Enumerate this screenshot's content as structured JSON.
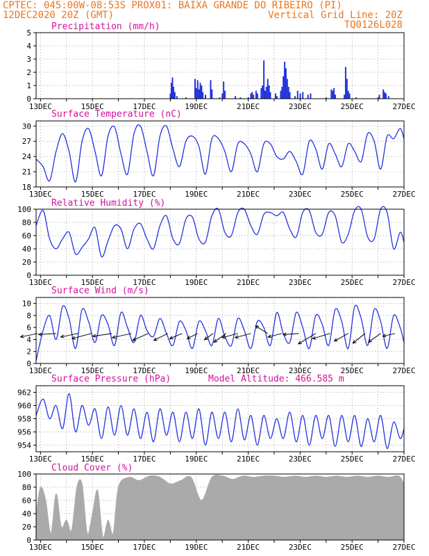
{
  "header": {
    "line1_left": "CPTEC:  045:00W-08:53S  PROX01: BAIXA GRANDE DO RIBEIRO (PI)",
    "line2_left": "12DEC2020 20Z (GMT)",
    "line2_right": "Vertical Grid Line: 20Z",
    "line3_right": "TQ0126L028"
  },
  "colors": {
    "header": "#e8761f",
    "panel_title": "#d4109a",
    "series": "#2233dd",
    "cloud": "#aaaaaa"
  },
  "x_tick_labels": [
    "13DEC",
    "15DEC",
    "17DEC",
    "19DEC",
    "21DEC",
    "23DEC",
    "25DEC",
    "27DEC"
  ],
  "chart_data": [
    {
      "type": "bar",
      "title": "Precipitation (mm/h)",
      "ylim": [
        0,
        5
      ],
      "yticks": [
        0,
        1,
        2,
        3,
        4,
        5
      ],
      "x_start_day": 12.83,
      "x_step_hours": 1,
      "bars": [
        [
          18.0,
          0.4
        ],
        [
          18.04,
          1.2
        ],
        [
          18.08,
          1.6
        ],
        [
          18.12,
          0.9
        ],
        [
          18.17,
          0.5
        ],
        [
          18.25,
          0.2
        ],
        [
          18.6,
          0.1
        ],
        [
          18.95,
          1.5
        ],
        [
          19.0,
          0.8
        ],
        [
          19.05,
          1.4
        ],
        [
          19.1,
          0.7
        ],
        [
          19.15,
          1.2
        ],
        [
          19.2,
          1.0
        ],
        [
          19.25,
          0.5
        ],
        [
          19.35,
          0.3
        ],
        [
          19.55,
          1.4
        ],
        [
          19.6,
          0.7
        ],
        [
          19.9,
          0.1
        ],
        [
          20.0,
          0.4
        ],
        [
          20.05,
          1.3
        ],
        [
          20.1,
          0.6
        ],
        [
          20.5,
          0.2
        ],
        [
          20.7,
          0.1
        ],
        [
          21.0,
          0.1
        ],
        [
          21.1,
          0.4
        ],
        [
          21.15,
          0.5
        ],
        [
          21.2,
          0.3
        ],
        [
          21.3,
          0.6
        ],
        [
          21.35,
          0.4
        ],
        [
          21.5,
          0.8
        ],
        [
          21.55,
          1.0
        ],
        [
          21.6,
          2.9
        ],
        [
          21.65,
          0.6
        ],
        [
          21.7,
          0.9
        ],
        [
          21.75,
          1.5
        ],
        [
          21.8,
          1.0
        ],
        [
          21.85,
          0.5
        ],
        [
          22.05,
          0.4
        ],
        [
          22.1,
          0.2
        ],
        [
          22.25,
          0.6
        ],
        [
          22.3,
          0.9
        ],
        [
          22.35,
          1.7
        ],
        [
          22.4,
          2.8
        ],
        [
          22.45,
          2.3
        ],
        [
          22.5,
          1.5
        ],
        [
          22.55,
          0.9
        ],
        [
          22.6,
          0.5
        ],
        [
          22.8,
          0.2
        ],
        [
          22.9,
          0.6
        ],
        [
          23.0,
          0.4
        ],
        [
          23.1,
          0.5
        ],
        [
          23.3,
          0.3
        ],
        [
          23.4,
          0.4
        ],
        [
          24.0,
          0.1
        ],
        [
          24.2,
          0.7
        ],
        [
          24.25,
          0.6
        ],
        [
          24.3,
          0.8
        ],
        [
          24.35,
          0.3
        ],
        [
          24.7,
          0.3
        ],
        [
          24.75,
          2.4
        ],
        [
          24.8,
          1.5
        ],
        [
          24.85,
          0.6
        ],
        [
          24.9,
          0.4
        ],
        [
          25.15,
          0.1
        ],
        [
          26.0,
          0.1
        ],
        [
          26.05,
          0.3
        ],
        [
          26.2,
          0.7
        ],
        [
          26.25,
          0.5
        ],
        [
          26.3,
          0.4
        ],
        [
          26.4,
          0.2
        ]
      ]
    },
    {
      "type": "line",
      "title": "Surface Temperature (nC)",
      "ylim": [
        18,
        31
      ],
      "yticks": [
        18,
        21,
        24,
        27,
        30
      ],
      "days": [
        12.83,
        13.1,
        13.35,
        13.6,
        13.85,
        14.1,
        14.35,
        14.6,
        14.85,
        15.1,
        15.35,
        15.6,
        15.85,
        16.1,
        16.35,
        16.6,
        16.85,
        17.1,
        17.35,
        17.6,
        17.85,
        18.1,
        18.35,
        18.6,
        18.85,
        19.1,
        19.35,
        19.6,
        19.85,
        20.1,
        20.35,
        20.6,
        20.85,
        21.1,
        21.35,
        21.6,
        21.85,
        22.1,
        22.35,
        22.6,
        22.85,
        23.1,
        23.35,
        23.6,
        23.85,
        24.1,
        24.35,
        24.6,
        24.85,
        25.1,
        25.35,
        25.6,
        25.85,
        26.1,
        26.35,
        26.6,
        26.85,
        27.0
      ],
      "values": [
        23.5,
        22.0,
        19.2,
        25.0,
        28.5,
        25.0,
        19.0,
        27.0,
        29.5,
        25.0,
        20.2,
        28.0,
        29.8,
        24.5,
        20.5,
        28.5,
        30.0,
        25.0,
        20.2,
        28.0,
        30.0,
        25.5,
        22.0,
        27.0,
        28.0,
        26.0,
        20.5,
        27.5,
        27.5,
        25.0,
        21.0,
        26.5,
        26.5,
        24.5,
        21.0,
        26.5,
        26.5,
        24.0,
        23.5,
        25.0,
        23.0,
        20.5,
        27.0,
        25.5,
        21.5,
        26.5,
        24.5,
        22.0,
        26.5,
        25.0,
        23.0,
        28.5,
        27.0,
        21.5,
        28.0,
        27.5,
        29.5,
        27.5
      ]
    },
    {
      "type": "line",
      "title": "Relative Humidity (%)",
      "ylim": [
        0,
        100
      ],
      "yticks": [
        0,
        20,
        40,
        60,
        80,
        100
      ],
      "days": [
        12.83,
        13.1,
        13.35,
        13.6,
        13.85,
        14.1,
        14.35,
        14.6,
        14.85,
        15.1,
        15.35,
        15.6,
        15.85,
        16.1,
        16.35,
        16.6,
        16.85,
        17.1,
        17.35,
        17.6,
        17.85,
        18.1,
        18.35,
        18.6,
        18.85,
        19.1,
        19.35,
        19.6,
        19.85,
        20.1,
        20.35,
        20.6,
        20.85,
        21.1,
        21.35,
        21.6,
        21.85,
        22.1,
        22.35,
        22.6,
        22.85,
        23.1,
        23.35,
        23.6,
        23.85,
        24.1,
        24.35,
        24.6,
        24.85,
        25.1,
        25.35,
        25.6,
        25.85,
        26.1,
        26.35,
        26.6,
        26.85,
        27.0
      ],
      "values": [
        75,
        98,
        55,
        40,
        55,
        65,
        32,
        42,
        55,
        72,
        28,
        52,
        75,
        70,
        40,
        70,
        78,
        55,
        40,
        75,
        90,
        55,
        48,
        85,
        88,
        55,
        50,
        90,
        100,
        65,
        60,
        95,
        100,
        75,
        62,
        92,
        95,
        90,
        95,
        70,
        58,
        95,
        98,
        65,
        62,
        95,
        90,
        50,
        62,
        98,
        100,
        58,
        55,
        100,
        95,
        40,
        65,
        50
      ]
    },
    {
      "type": "line",
      "title": "Surface Wind (m/s)",
      "ylim": [
        0,
        11
      ],
      "yticks": [
        0,
        2,
        4,
        6,
        8,
        10
      ],
      "days": [
        12.83,
        13.1,
        13.35,
        13.6,
        13.85,
        14.1,
        14.35,
        14.6,
        14.85,
        15.1,
        15.35,
        15.6,
        15.85,
        16.1,
        16.35,
        16.6,
        16.85,
        17.1,
        17.35,
        17.6,
        17.85,
        18.1,
        18.35,
        18.6,
        18.85,
        19.1,
        19.35,
        19.6,
        19.85,
        20.1,
        20.35,
        20.6,
        20.85,
        21.1,
        21.35,
        21.6,
        21.85,
        22.1,
        22.35,
        22.6,
        22.85,
        23.1,
        23.35,
        23.6,
        23.85,
        24.1,
        24.35,
        24.6,
        24.85,
        25.1,
        25.35,
        25.6,
        25.85,
        26.1,
        26.35,
        26.6,
        26.85,
        27.0
      ],
      "values": [
        0.5,
        5.5,
        8.0,
        4.0,
        9.5,
        7.5,
        2.5,
        9.0,
        7.0,
        3.5,
        8.0,
        6.5,
        3.0,
        8.5,
        6.0,
        3.5,
        8.0,
        5.5,
        4.5,
        7.5,
        5.0,
        3.0,
        7.0,
        5.5,
        2.5,
        7.0,
        5.5,
        3.0,
        7.5,
        4.5,
        3.0,
        7.5,
        5.5,
        2.5,
        7.0,
        6.0,
        3.0,
        8.5,
        5.0,
        3.5,
        8.5,
        6.0,
        2.5,
        8.0,
        6.5,
        3.0,
        9.0,
        7.0,
        2.5,
        9.5,
        7.5,
        3.0,
        9.0,
        7.0,
        2.5,
        8.0,
        6.0,
        3.5
      ]
    },
    {
      "type": "line",
      "title": "Surface Pressure (hPa)",
      "annotation": "Model Altitude: 466.585 m",
      "ylim": [
        953,
        963
      ],
      "yticks": [
        954,
        956,
        958,
        960,
        962
      ],
      "days": [
        12.83,
        13.1,
        13.35,
        13.6,
        13.85,
        14.1,
        14.35,
        14.6,
        14.85,
        15.1,
        15.35,
        15.6,
        15.85,
        16.1,
        16.35,
        16.6,
        16.85,
        17.1,
        17.35,
        17.6,
        17.85,
        18.1,
        18.35,
        18.6,
        18.85,
        19.1,
        19.35,
        19.6,
        19.85,
        20.1,
        20.35,
        20.6,
        20.85,
        21.1,
        21.35,
        21.6,
        21.85,
        22.1,
        22.35,
        22.6,
        22.85,
        23.1,
        23.35,
        23.6,
        23.85,
        24.1,
        24.35,
        24.6,
        24.85,
        25.1,
        25.35,
        25.6,
        25.85,
        26.1,
        26.35,
        26.6,
        26.85,
        27.0
      ],
      "values": [
        958.5,
        961.0,
        958.0,
        960.0,
        956.5,
        961.8,
        956.0,
        960.0,
        957.0,
        959.5,
        955.0,
        959.8,
        955.5,
        960.0,
        955.5,
        959.5,
        955.0,
        959.0,
        954.5,
        959.5,
        955.5,
        959.0,
        954.5,
        959.0,
        955.0,
        959.5,
        954.0,
        959.0,
        955.0,
        959.0,
        954.5,
        959.5,
        954.8,
        958.5,
        954.0,
        958.5,
        955.0,
        958.0,
        955.0,
        959.0,
        954.5,
        958.5,
        954.0,
        958.5,
        955.0,
        958.5,
        953.8,
        958.5,
        954.5,
        958.5,
        953.8,
        958.0,
        954.5,
        958.5,
        953.5,
        957.5,
        955.0,
        956.5
      ]
    },
    {
      "type": "area",
      "title": "Cloud Cover (%)",
      "ylim": [
        0,
        100
      ],
      "yticks": [
        0,
        20,
        40,
        60,
        80,
        100
      ],
      "days": [
        12.83,
        13.0,
        13.2,
        13.4,
        13.6,
        13.8,
        14.0,
        14.2,
        14.4,
        14.6,
        14.8,
        15.0,
        15.2,
        15.4,
        15.6,
        15.8,
        16.0,
        16.4,
        16.8,
        17.2,
        17.6,
        18.0,
        18.4,
        18.8,
        19.2,
        19.6,
        20.0,
        20.4,
        20.8,
        21.2,
        21.6,
        22.0,
        22.4,
        22.8,
        23.2,
        23.6,
        24.0,
        24.4,
        24.8,
        25.2,
        25.6,
        26.0,
        26.4,
        26.8,
        27.0
      ],
      "values": [
        40,
        80,
        60,
        10,
        70,
        20,
        30,
        15,
        80,
        85,
        10,
        40,
        75,
        5,
        30,
        10,
        80,
        95,
        90,
        97,
        95,
        85,
        90,
        95,
        60,
        95,
        97,
        92,
        97,
        95,
        97,
        97,
        95,
        97,
        95,
        97,
        95,
        97,
        95,
        97,
        95,
        97,
        95,
        97,
        85
      ]
    }
  ],
  "wind_vectors": {
    "days": [
      12.9,
      13.6,
      14.45,
      14.95,
      15.75,
      16.5,
      17.15,
      17.9,
      18.45,
      19.05,
      19.65,
      20.15,
      20.6,
      21.1,
      21.75,
      22.3,
      22.95,
      23.6,
      24.15,
      24.85,
      25.5,
      26.1,
      26.65
    ],
    "u": [
      -5.0,
      -5.0,
      -5.0,
      -5.5,
      -5.5,
      -5.5,
      -4.5,
      -4.0,
      -3.5,
      -3.0,
      -2.5,
      -3.5,
      -4.5,
      -4.5,
      -3.5,
      -4.0,
      -4.5,
      -5.0,
      -5.0,
      -4.0,
      -3.5,
      -3.5,
      -3.5
    ],
    "v": [
      -1.0,
      -0.3,
      -1.0,
      -1.5,
      -0.8,
      -1.2,
      -2.0,
      -2.0,
      -1.5,
      -1.5,
      -1.8,
      -2.5,
      -1.2,
      -1.2,
      2.2,
      -1.0,
      -0.3,
      -3.0,
      -1.5,
      -2.2,
      -2.8,
      -2.5,
      -0.8
    ],
    "scale": 5
  }
}
